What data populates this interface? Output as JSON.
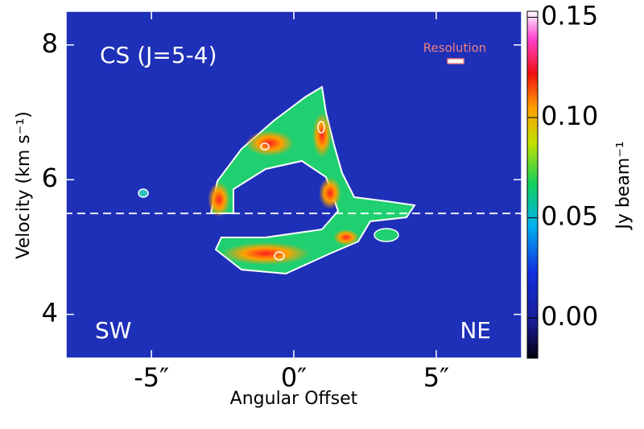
{
  "chart_data": {
    "type": "position-velocity",
    "title": "CS (J=5-4)",
    "xlabel": "Angular Offset",
    "ylabel": "Velocity (km s⁻¹)",
    "colorbar_label": "Jy beam⁻¹",
    "annotations": {
      "left": "SW",
      "right": "NE",
      "beam": "Resolution"
    },
    "xlim": [
      -8,
      8
    ],
    "ylim": [
      3.35,
      8.5
    ],
    "xticks": [
      {
        "value": -5,
        "label": "-5″"
      },
      {
        "value": 0,
        "label": "0″"
      },
      {
        "value": 5,
        "label": "5″"
      }
    ],
    "yticks": [
      4,
      6,
      8
    ],
    "clim": [
      -0.02,
      0.153
    ],
    "cticks": [
      {
        "value": 0,
        "label": "0.00"
      },
      {
        "value": 0.05,
        "label": "0.05"
      },
      {
        "value": 0.1,
        "label": "0.10"
      },
      {
        "value": 0.15,
        "label": "0.15"
      }
    ],
    "hline": 5.5
  }
}
